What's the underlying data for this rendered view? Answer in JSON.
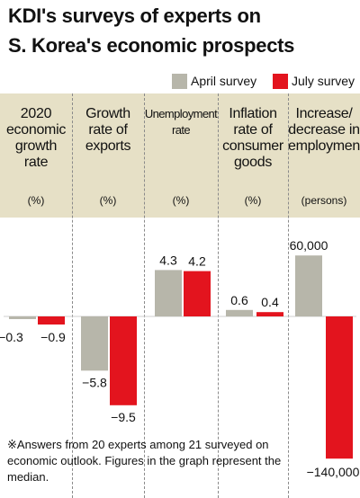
{
  "title_line1": "KDI's surveys of experts on",
  "title_line2": "S. Korea's economic prospects",
  "legend": [
    {
      "name": "April survey",
      "color": "#b7b6aa"
    },
    {
      "name": "July survey",
      "color": "#e3141e"
    }
  ],
  "note": "※Answers from 20 experts among 21 surveyed on economic outlook. Figures in the graph represent the median.",
  "chart_data": {
    "type": "bar",
    "categories": [
      {
        "label": [
          "2020",
          "economic",
          "growth",
          "rate"
        ],
        "unit": "(%)"
      },
      {
        "label": [
          "Growth",
          "rate of",
          "exports"
        ],
        "unit": "(%)"
      },
      {
        "label": [
          "Unemployment",
          "rate"
        ],
        "unit": "(%)"
      },
      {
        "label": [
          "Inflation",
          "rate of",
          "consumer",
          "goods"
        ],
        "unit": "(%)"
      },
      {
        "label": [
          "Increase/",
          "decrease in",
          "employment"
        ],
        "unit": "(persons)"
      }
    ],
    "series": [
      {
        "name": "April survey",
        "values": [
          -0.3,
          -5.8,
          4.3,
          0.6,
          60000
        ],
        "labels": [
          "−0.3",
          "−5.8",
          "4.3",
          "0.6",
          "60,000"
        ]
      },
      {
        "name": "July survey",
        "values": [
          -0.9,
          -9.5,
          4.2,
          0.4,
          -140000
        ],
        "labels": [
          "−0.9",
          "−9.5",
          "4.2",
          "0.4",
          "−140,000"
        ]
      }
    ]
  }
}
